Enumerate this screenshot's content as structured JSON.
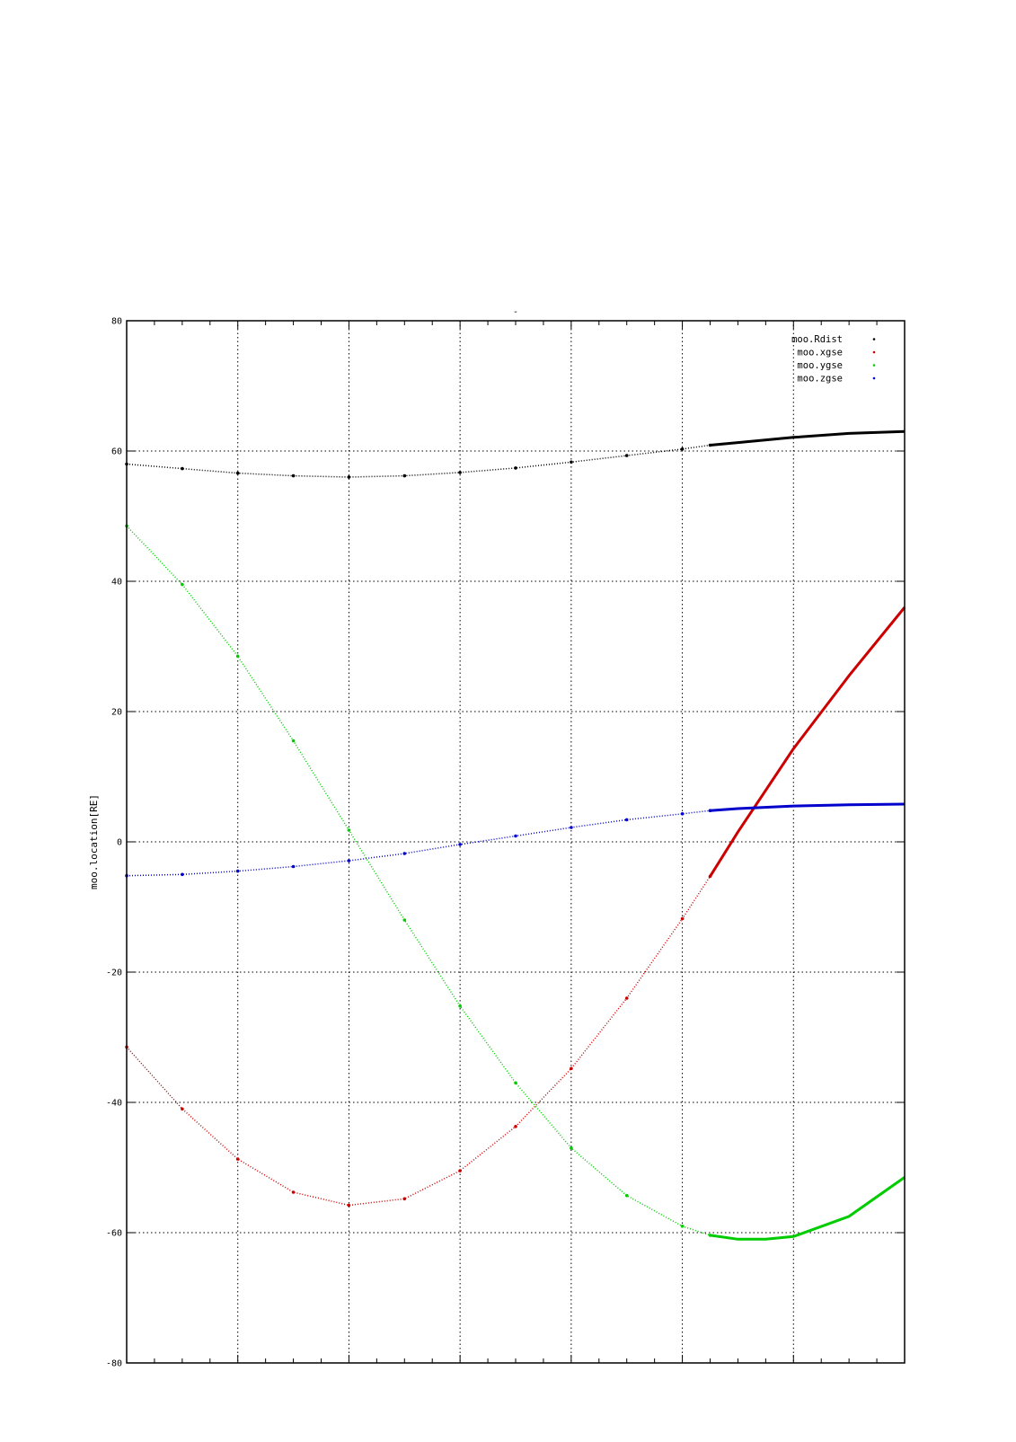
{
  "chart_data": {
    "type": "line",
    "title": "-",
    "ylabel": "moo.location[RE]",
    "xlabel": "",
    "ylim": [
      -80,
      80
    ],
    "xlim": [
      0,
      7
    ],
    "y_ticks": [
      "80",
      "60",
      "40",
      "20",
      "0",
      "-20",
      "-40",
      "-60",
      "-80"
    ],
    "grid": true,
    "legend_position": "top-right",
    "series": [
      {
        "name": "moo.Rdist",
        "color": "#000000",
        "x": [
          0,
          0.5,
          1,
          1.5,
          2,
          2.5,
          3,
          3.5,
          4,
          4.5,
          5,
          5.25,
          5.5,
          6,
          6.5,
          7
        ],
        "y": [
          58,
          57.3,
          56.6,
          56.2,
          56.0,
          56.2,
          56.7,
          57.4,
          58.3,
          59.3,
          60.3,
          60.9,
          61.3,
          62.1,
          62.7,
          63.0
        ]
      },
      {
        "name": "moo.xgse",
        "color": "#cc0000",
        "x": [
          0,
          0.5,
          1,
          1.5,
          2,
          2.5,
          3,
          3.5,
          4,
          4.5,
          5,
          5.25,
          5.5,
          6,
          6.5,
          7
        ],
        "y": [
          -31.5,
          -41,
          -48.7,
          -53.8,
          -55.8,
          -54.8,
          -50.5,
          -43.7,
          -34.8,
          -24,
          -11.8,
          -5.3,
          1.5,
          14.3,
          25.5,
          36
        ]
      },
      {
        "name": "moo.ygse",
        "color": "#00cc00",
        "x": [
          0,
          0.5,
          1,
          1.5,
          2,
          2.5,
          3,
          3.5,
          4,
          4.5,
          5,
          5.25,
          5.5,
          5.75,
          6,
          6.5,
          7
        ],
        "y": [
          48.5,
          39.5,
          28.5,
          15.5,
          1.8,
          -12,
          -25.2,
          -37,
          -47,
          -54.3,
          -59,
          -60.4,
          -61,
          -61,
          -60.6,
          -57.5,
          -51.5
        ]
      },
      {
        "name": "moo.zgse",
        "color": "#0000cc",
        "x": [
          0,
          0.5,
          1,
          1.5,
          2,
          2.5,
          3,
          3.5,
          4,
          4.5,
          5,
          5.25,
          5.5,
          6,
          6.5,
          7
        ],
        "y": [
          -5.2,
          -5.0,
          -4.5,
          -3.8,
          -2.9,
          -1.8,
          -0.4,
          0.9,
          2.2,
          3.4,
          4.3,
          4.8,
          5.1,
          5.5,
          5.7,
          5.8
        ]
      }
    ]
  }
}
